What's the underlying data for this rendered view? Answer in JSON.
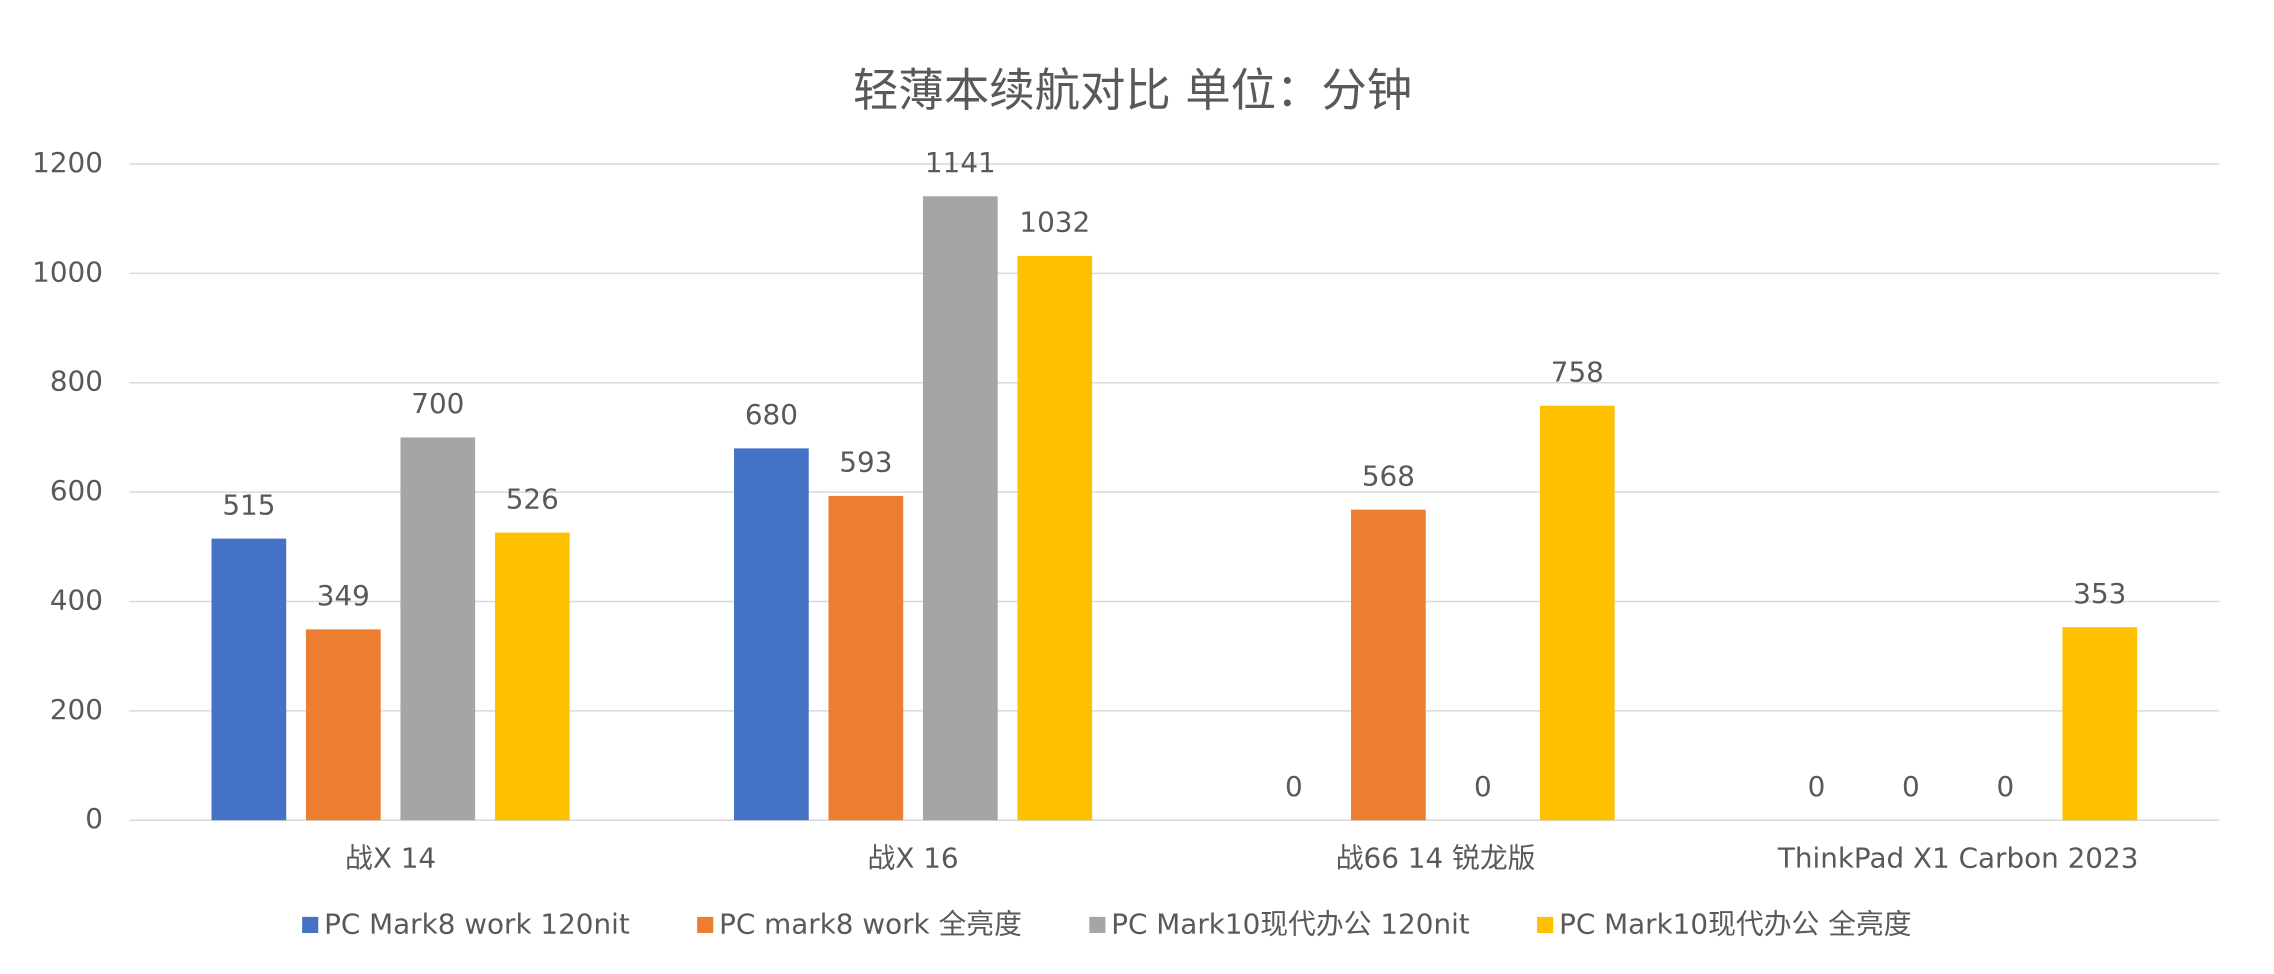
{
  "chart_data": {
    "type": "bar",
    "title": "轻薄本续航对比 单位：分钟",
    "categories": [
      "战X 14",
      "战X 16",
      "战66 14 锐龙版",
      "ThinkPad X1 Carbon 2023"
    ],
    "series": [
      {
        "name": "PC Mark8 work 120nit",
        "color": "#4472c4",
        "values": [
          515,
          680,
          0,
          0
        ]
      },
      {
        "name": "PC mark8 work 全亮度",
        "color": "#ed7d31",
        "values": [
          349,
          593,
          568,
          0
        ]
      },
      {
        "name": "PC Mark10现代办公 120nit",
        "color": "#a5a5a5",
        "values": [
          700,
          1141,
          0,
          0
        ]
      },
      {
        "name": "PC Mark10现代办公 全亮度",
        "color": "#ffc000",
        "values": [
          526,
          1032,
          758,
          353
        ]
      }
    ],
    "ylim": [
      0,
      1200
    ],
    "yticks": [
      0,
      200,
      400,
      600,
      800,
      1000,
      1200
    ],
    "grid": true,
    "legend": "bottom"
  }
}
